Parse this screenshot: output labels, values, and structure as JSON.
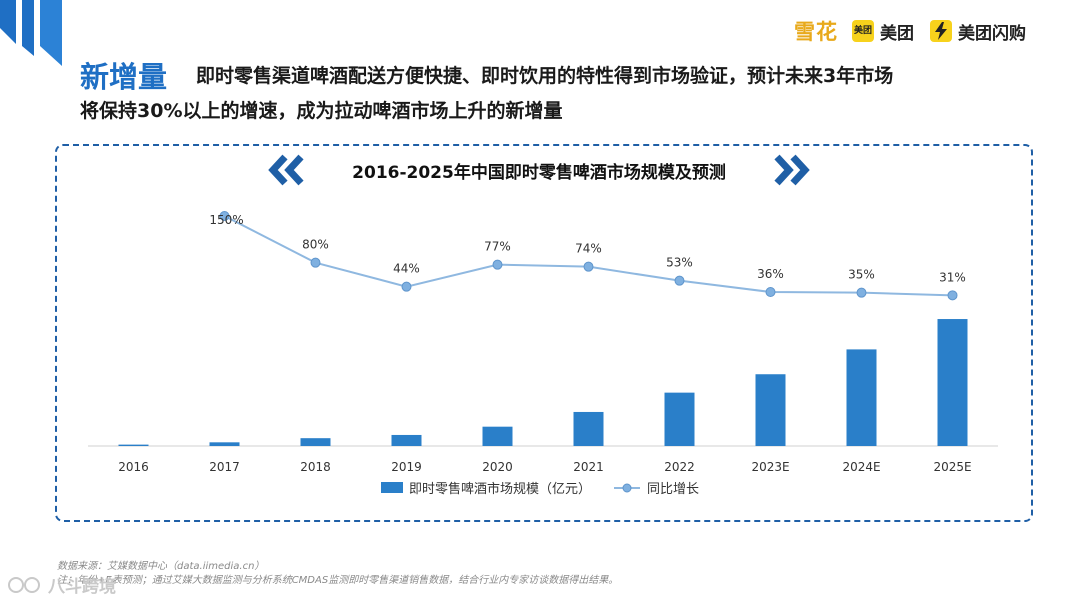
{
  "brand": {
    "xuehua": "雪花",
    "meituan_badge": "美团",
    "meituan": "美团",
    "meituan_shangou": "美团闪购"
  },
  "header": {
    "keyword": "新增量",
    "line1": "即时零售渠道啤酒配送方便快捷、即时饮用的特性得到市场验证，预计未来3年市场",
    "line2": "将保持30%以上的增速，成为拉动啤酒市场上升的新增量"
  },
  "chart_data": {
    "type": "bar",
    "title": "2016-2025年中国即时零售啤酒市场规模及预测",
    "categories": [
      "2016",
      "2017",
      "2018",
      "2019",
      "2020",
      "2021",
      "2022",
      "2023E",
      "2024E",
      "2025E"
    ],
    "series": [
      {
        "name": "即时零售啤酒市场规模（亿元）",
        "type": "bar",
        "values": [
          1.5,
          4,
          8.5,
          12,
          21,
          37,
          58,
          78,
          105,
          138
        ]
      },
      {
        "name": "同比增长",
        "type": "line",
        "values": [
          null,
          150,
          80,
          44,
          77,
          74,
          53,
          36,
          35,
          31
        ],
        "labels": [
          "",
          "150%",
          "80%",
          "44%",
          "77%",
          "74%",
          "53%",
          "36%",
          "35%",
          "31%"
        ]
      }
    ],
    "ylim": [
      0,
      150
    ],
    "ylim_right": [
      0,
      180
    ],
    "xlabel": "",
    "ylabel": "",
    "legend": [
      "即时零售啤酒市场规模（亿元）",
      "同比增长"
    ],
    "colors": {
      "bar": "#2a7fc9",
      "line": "#8fb8e0",
      "marker": "#7fb0e0"
    }
  },
  "footnotes": {
    "source": "数据来源：艾媒数据中心（data.iimedia.cn）",
    "note": "注：年份+E表预测；通过艾媒大数据监测与分析系统CMDAS监测即时零售渠道销售数据，结合行业内专家访谈数据得出结果。"
  },
  "watermark": "八斗跨境",
  "theme": {
    "accent": "#1f6fc4",
    "frame": "#1f5fa6",
    "chevron": "#1f5fa6"
  }
}
